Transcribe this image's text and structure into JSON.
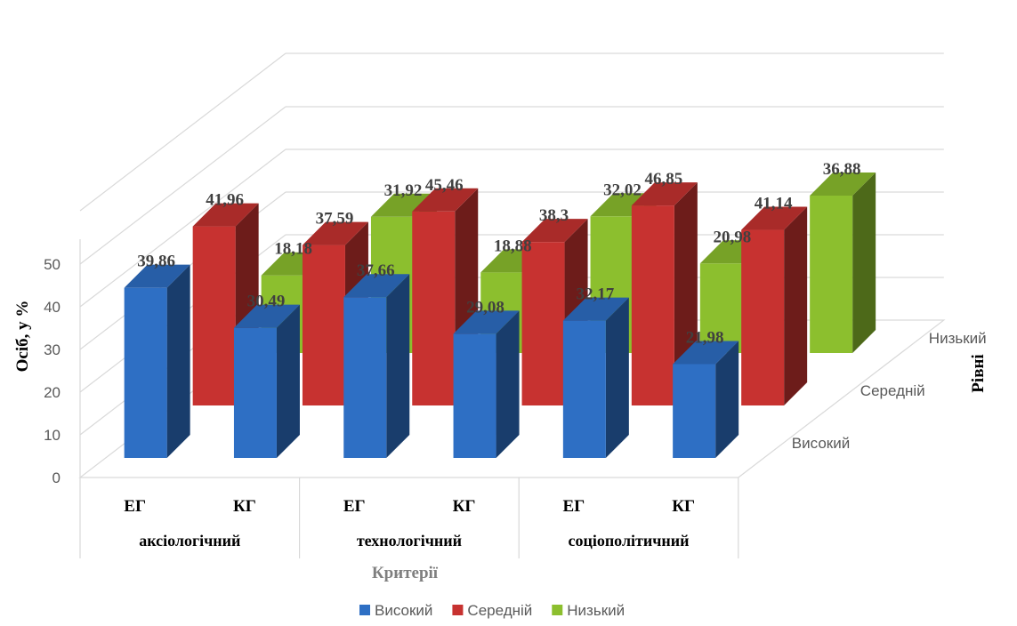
{
  "chart_data": {
    "type": "bar",
    "title": "",
    "xlabel": "Критерії",
    "ylabel": "Осіб, у %",
    "zlabel": "Рівні",
    "ylim": [
      0,
      50
    ],
    "yticks": [
      "0",
      "10",
      "20",
      "30",
      "40",
      "50"
    ],
    "groups": [
      "аксіологічний",
      "технологічний",
      "соціополітичний"
    ],
    "categories": [
      "ЕГ",
      "КГ",
      "ЕГ",
      "КГ",
      "ЕГ",
      "КГ"
    ],
    "series": [
      {
        "name": "Високий",
        "values": [
          39.86,
          30.49,
          37.66,
          29.08,
          32.17,
          21.98
        ],
        "labels": [
          "39,86",
          "30,49",
          "37,66",
          "29,08",
          "32,17",
          "21,98"
        ],
        "color": "#2e6fc4"
      },
      {
        "name": "Середній",
        "values": [
          41.96,
          37.59,
          45.46,
          38.3,
          46.85,
          41.14
        ],
        "labels": [
          "41,96",
          "37,59",
          "45,46",
          "38,3",
          "46,85",
          "41,14"
        ],
        "color": "#c73230"
      },
      {
        "name": "Низький",
        "values": [
          18.18,
          31.92,
          18.88,
          32.02,
          20.98,
          36.88
        ],
        "labels": [
          "18,18",
          "31,92",
          "18,88",
          "32,02",
          "20,98",
          "36,88"
        ],
        "color": "#8cbf2e"
      }
    ],
    "legend_position": "bottom",
    "grid": true
  }
}
